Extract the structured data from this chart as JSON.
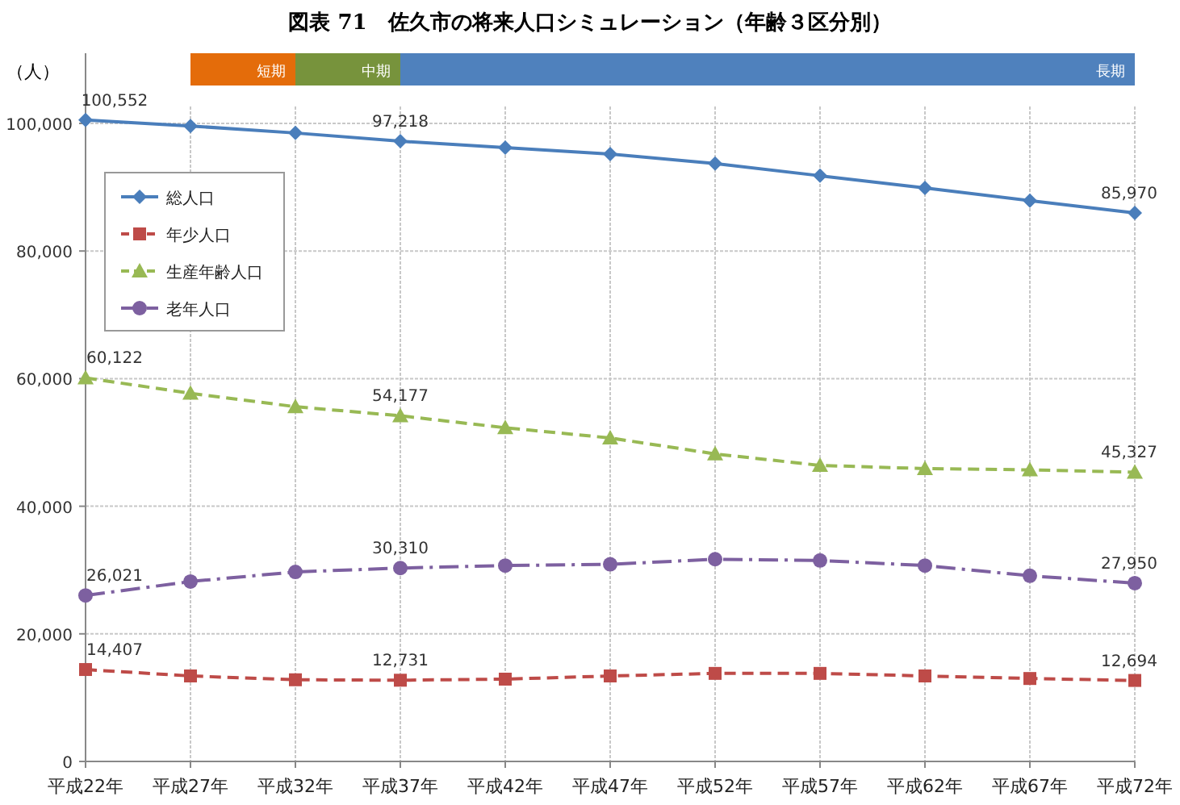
{
  "chart_data": {
    "type": "line",
    "title": "図表 71　佐久市の将来人口シミュレーション（年齢３区分別）",
    "ylabel": "（人）",
    "categories": [
      "平成22年",
      "平成27年",
      "平成32年",
      "平成37年",
      "平成42年",
      "平成47年",
      "平成52年",
      "平成57年",
      "平成62年",
      "平成67年",
      "平成72年"
    ],
    "series": [
      {
        "name": "総人口",
        "color": "#4a7ebb",
        "marker": "diamond",
        "line_style": "solid",
        "values": [
          100552,
          99600,
          98500,
          97218,
          96200,
          95200,
          93700,
          91800,
          89900,
          87900,
          85970
        ],
        "value_labels": [
          "100,552",
          null,
          null,
          "97,218",
          null,
          null,
          null,
          null,
          null,
          null,
          "85,970"
        ]
      },
      {
        "name": "年少人口",
        "color": "#be4b48",
        "marker": "square",
        "line_style": "dashed",
        "values": [
          14407,
          13400,
          12800,
          12731,
          12900,
          13400,
          13800,
          13800,
          13400,
          13000,
          12694
        ],
        "value_labels": [
          "14,407",
          null,
          null,
          "12,731",
          null,
          null,
          null,
          null,
          null,
          null,
          "12,694"
        ]
      },
      {
        "name": "生産年齢人口",
        "color": "#98b954",
        "marker": "triangle",
        "line_style": "dashed",
        "values": [
          60122,
          57700,
          55600,
          54177,
          52300,
          50700,
          48200,
          46400,
          45900,
          45700,
          45327
        ],
        "value_labels": [
          "60,122",
          null,
          null,
          "54,177",
          null,
          null,
          null,
          null,
          null,
          null,
          "45,327"
        ]
      },
      {
        "name": "老年人口",
        "color": "#7d60a0",
        "marker": "circle",
        "line_style": "dashdot",
        "values": [
          26021,
          28200,
          29700,
          30310,
          30700,
          30900,
          31700,
          31500,
          30700,
          29100,
          27950
        ],
        "value_labels": [
          "26,021",
          null,
          null,
          "30,310",
          null,
          null,
          null,
          null,
          null,
          null,
          "27,950"
        ]
      }
    ],
    "ylim": [
      0,
      111000
    ],
    "yticks": [
      {
        "value": 0,
        "label": "0"
      },
      {
        "value": 20000,
        "label": "20,000"
      },
      {
        "value": 40000,
        "label": "40,000"
      },
      {
        "value": 60000,
        "label": "60,000"
      },
      {
        "value": 80000,
        "label": "80,000"
      },
      {
        "value": 100000,
        "label": "100,000"
      }
    ],
    "bands": [
      {
        "axis": "x",
        "from": "平成27年",
        "to": "平成32年",
        "label": "短期",
        "color": "#e46c0a"
      },
      {
        "axis": "x",
        "from": "平成32年",
        "to": "平成37年",
        "label": "中期",
        "color": "#77933c"
      },
      {
        "axis": "x",
        "from": "平成37年",
        "to": "平成72年",
        "label": "長期",
        "color": "#4f81bd"
      }
    ],
    "grid": true,
    "legend": "top left"
  }
}
